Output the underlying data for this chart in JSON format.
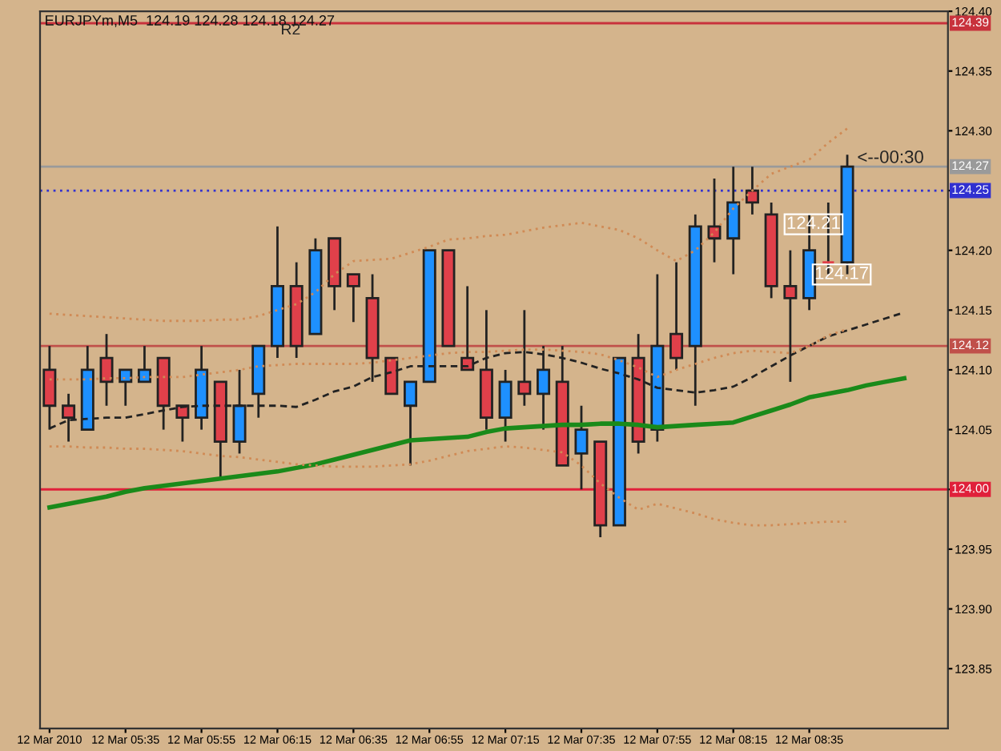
{
  "chart_data": {
    "type": "candlestick",
    "title": "EURJPYm,M5  124.19 124.28 124.18 124.27",
    "categories": [
      "12 Mar 2010",
      null,
      null,
      null,
      "12 Mar 05:35",
      null,
      null,
      null,
      "12 Mar 05:55",
      null,
      null,
      null,
      "12 Mar 06:15",
      null,
      null,
      null,
      "12 Mar 06:35",
      null,
      null,
      null,
      "12 Mar 06:55",
      null,
      null,
      null,
      "12 Mar 07:15",
      null,
      null,
      null,
      "12 Mar 07:35",
      null,
      null,
      null,
      "12 Mar 07:55",
      null,
      null,
      null,
      "12 Mar 08:15",
      null,
      null,
      null,
      "12 Mar 08:35",
      null,
      null,
      null,
      null,
      null,
      null,
      null
    ],
    "ohlc": [
      [
        124.1,
        124.12,
        124.05,
        124.07
      ],
      [
        124.07,
        124.08,
        124.04,
        124.06
      ],
      [
        124.05,
        124.12,
        124.05,
        124.1
      ],
      [
        124.11,
        124.13,
        124.07,
        124.09
      ],
      [
        124.09,
        124.1,
        124.07,
        124.1
      ],
      [
        124.09,
        124.12,
        124.09,
        124.1
      ],
      [
        124.11,
        124.11,
        124.05,
        124.07
      ],
      [
        124.07,
        124.07,
        124.04,
        124.06
      ],
      [
        124.06,
        124.12,
        124.05,
        124.1
      ],
      [
        124.09,
        124.09,
        124.01,
        124.04
      ],
      [
        124.04,
        124.1,
        124.03,
        124.07
      ],
      [
        124.08,
        124.12,
        124.06,
        124.12
      ],
      [
        124.12,
        124.22,
        124.11,
        124.17
      ],
      [
        124.17,
        124.19,
        124.11,
        124.12
      ],
      [
        124.13,
        124.21,
        124.13,
        124.2
      ],
      [
        124.21,
        124.21,
        124.15,
        124.17
      ],
      [
        124.18,
        124.18,
        124.14,
        124.17
      ],
      [
        124.16,
        124.18,
        124.09,
        124.11
      ],
      [
        124.11,
        124.11,
        124.08,
        124.08
      ],
      [
        124.07,
        124.09,
        124.02,
        124.09
      ],
      [
        124.09,
        124.2,
        124.09,
        124.2
      ],
      [
        124.2,
        124.2,
        124.12,
        124.12
      ],
      [
        124.11,
        124.17,
        124.1,
        124.1
      ],
      [
        124.1,
        124.15,
        124.05,
        124.06
      ],
      [
        124.06,
        124.1,
        124.04,
        124.09
      ],
      [
        124.09,
        124.15,
        124.07,
        124.08
      ],
      [
        124.08,
        124.12,
        124.05,
        124.1
      ],
      [
        124.09,
        124.12,
        124.02,
        124.02
      ],
      [
        124.03,
        124.07,
        124.0,
        124.05
      ],
      [
        124.04,
        124.04,
        123.96,
        123.97
      ],
      [
        123.97,
        124.11,
        123.97,
        124.11
      ],
      [
        124.11,
        124.13,
        124.03,
        124.04
      ],
      [
        124.05,
        124.18,
        124.04,
        124.12
      ],
      [
        124.13,
        124.19,
        124.1,
        124.11
      ],
      [
        124.12,
        124.23,
        124.07,
        124.22
      ],
      [
        124.22,
        124.26,
        124.19,
        124.21
      ],
      [
        124.21,
        124.27,
        124.18,
        124.24
      ],
      [
        124.25,
        124.27,
        124.23,
        124.24
      ],
      [
        124.23,
        124.24,
        124.16,
        124.17
      ],
      [
        124.17,
        124.2,
        124.09,
        124.16
      ],
      [
        124.16,
        124.23,
        124.15,
        124.2
      ],
      [
        124.19,
        124.24,
        124.18,
        124.19
      ],
      [
        124.19,
        124.28,
        124.18,
        124.27
      ],
      null,
      null,
      null,
      null,
      null
    ],
    "colors": [
      "#e0404a",
      "#e0404a",
      "#1e90ff",
      "#e0404a",
      "#1e90ff",
      "#1e90ff",
      "#e0404a",
      "#e0404a",
      "#1e90ff",
      "#e0404a",
      "#1e90ff",
      "#1e90ff",
      "#1e90ff",
      "#e0404a",
      "#1e90ff",
      "#e0404a",
      "#e0404a",
      "#e0404a",
      "#e0404a",
      "#1e90ff",
      "#1e90ff",
      "#e0404a",
      "#e0404a",
      "#e0404a",
      "#1e90ff",
      "#e0404a",
      "#1e90ff",
      "#e0404a",
      "#1e90ff",
      "#e0404a",
      "#1e90ff",
      "#e0404a",
      "#1e90ff",
      "#e0404a",
      "#1e90ff",
      "#e0404a",
      "#1e90ff",
      "#e0404a",
      "#e0404a",
      "#e0404a",
      "#1e90ff",
      "#e0404a",
      "#1e90ff",
      null,
      null,
      null,
      null,
      null
    ],
    "series": [
      {
        "type": "line",
        "color": "#1a8a1a",
        "line_style": "solid",
        "values": [
          123.985,
          123.988,
          123.991,
          123.994,
          123.998,
          124.001,
          124.003,
          124.005,
          124.007,
          124.009,
          124.011,
          124.013,
          124.015,
          124.018,
          124.021,
          124.025,
          124.029,
          124.033,
          124.037,
          124.041,
          124.042,
          124.043,
          124.044,
          124.048,
          124.051,
          124.052,
          124.053,
          124.054,
          124.054,
          124.055,
          124.055,
          124.054,
          124.052,
          124.053,
          124.054,
          124.055,
          124.056,
          124.061,
          124.066,
          124.071,
          124.077,
          124.08,
          124.083,
          124.087,
          124.09,
          124.093,
          null,
          null
        ]
      },
      {
        "type": "line",
        "color": "#222222",
        "line_style": "dashed",
        "values": [
          124.051,
          124.058,
          124.059,
          124.06,
          124.06,
          124.063,
          124.066,
          124.069,
          124.07,
          124.07,
          124.07,
          124.07,
          124.07,
          124.069,
          124.075,
          124.082,
          124.086,
          124.094,
          124.098,
          124.103,
          124.103,
          124.103,
          124.103,
          124.11,
          124.114,
          124.115,
          124.113,
          124.11,
          124.106,
          124.101,
          124.097,
          124.092,
          124.085,
          124.083,
          124.081,
          124.083,
          124.086,
          124.094,
          124.103,
          124.112,
          124.12,
          124.128,
          124.133,
          124.138,
          124.143,
          124.148,
          null,
          null
        ]
      },
      {
        "type": "line",
        "color": "#d08a55",
        "line_style": "dotted",
        "values": [
          124.147,
          124.146,
          124.145,
          124.144,
          124.143,
          124.142,
          124.141,
          124.141,
          124.141,
          124.142,
          124.142,
          124.145,
          124.15,
          124.155,
          124.165,
          124.18,
          124.191,
          124.192,
          124.193,
          124.198,
          124.203,
          124.209,
          124.21,
          124.212,
          124.213,
          124.216,
          124.219,
          124.221,
          124.223,
          124.22,
          124.217,
          124.21,
          124.2,
          124.191,
          124.2,
          124.215,
          124.235,
          124.25,
          124.264,
          124.27,
          124.276,
          124.29,
          124.302,
          null,
          null,
          null,
          null,
          null
        ]
      },
      {
        "type": "line",
        "color": "#d08a55",
        "line_style": "dotted",
        "values": [
          124.092,
          124.092,
          124.092,
          124.093,
          124.093,
          124.094,
          124.094,
          124.094,
          124.096,
          124.098,
          124.1,
          124.103,
          124.104,
          124.105,
          124.105,
          124.105,
          124.105,
          124.106,
          124.108,
          124.11,
          124.112,
          124.114,
          124.115,
          124.115,
          124.116,
          124.117,
          124.117,
          124.116,
          124.115,
          124.113,
          124.108,
          124.102,
          124.094,
          124.1,
          124.105,
          124.11,
          124.114,
          124.116,
          124.115,
          124.114,
          124.12,
          124.129,
          124.134,
          null,
          null,
          null,
          null,
          null
        ]
      },
      {
        "type": "line",
        "color": "#d08a55",
        "line_style": "dotted",
        "values": [
          124.036,
          124.036,
          124.035,
          124.035,
          124.034,
          124.034,
          124.033,
          124.032,
          124.03,
          124.028,
          124.027,
          124.025,
          124.023,
          124.021,
          124.02,
          124.019,
          124.019,
          124.019,
          124.02,
          124.021,
          124.024,
          124.028,
          124.032,
          124.034,
          124.036,
          124.035,
          124.033,
          124.031,
          124.02,
          124.005,
          123.993,
          123.983,
          123.988,
          123.984,
          123.98,
          123.975,
          123.972,
          123.97,
          123.97,
          123.971,
          123.972,
          123.973,
          123.973,
          null,
          null,
          null,
          null,
          null
        ]
      }
    ],
    "ylim": [
      123.8,
      124.4
    ],
    "yticks": [
      {
        "value": 123.85,
        "label": "123.85"
      },
      {
        "value": 123.9,
        "label": "123.90"
      },
      {
        "value": 123.95,
        "label": "123.95"
      },
      {
        "value": 124.0,
        "label": null
      },
      {
        "value": 124.05,
        "label": "124.05"
      },
      {
        "value": 124.1,
        "label": "124.10"
      },
      {
        "value": 124.15,
        "label": "124.15"
      },
      {
        "value": 124.2,
        "label": "124.20"
      },
      {
        "value": 124.25,
        "label": null
      },
      {
        "value": 124.3,
        "label": "124.30"
      },
      {
        "value": 124.35,
        "label": "124.35"
      },
      {
        "value": 124.4,
        "label": "124.40"
      }
    ],
    "ref_lines": [
      {
        "axis": "y",
        "value": 124.39,
        "label": "124.39",
        "color": "#c8323c",
        "line_style": "solid"
      },
      {
        "axis": "y",
        "value": 124.27,
        "label": "124.27",
        "color": "#9a9a9a",
        "line_style": "solid"
      },
      {
        "axis": "y",
        "value": 124.25,
        "label": "124.25",
        "color": "#3030d0",
        "line_style": "dotted"
      },
      {
        "axis": "y",
        "value": 124.12,
        "label": "124.12",
        "color": "#c0504a",
        "line_style": "solid"
      },
      {
        "axis": "y",
        "value": 124.0,
        "label": "124.00",
        "color": "#e0203a",
        "line_style": "solid"
      }
    ],
    "annotations": [
      {
        "text": "R2",
        "y": 124.39
      },
      {
        "text": "<--00:30",
        "y": 124.27
      },
      "124.21",
      "124.17"
    ],
    "grid": false,
    "legend": false
  }
}
